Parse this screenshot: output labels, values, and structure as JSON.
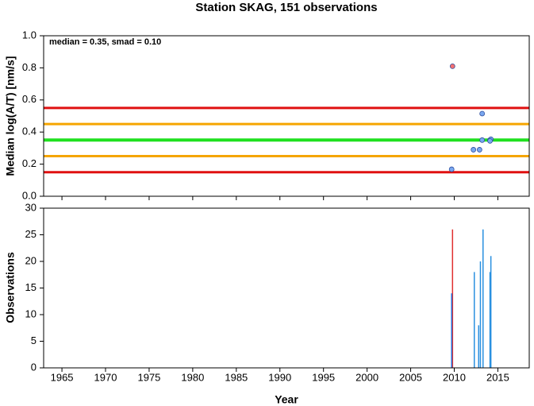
{
  "chart_data": [
    {
      "type": "scatter",
      "title": "Station SKAG, 151 observations",
      "annotation": "median = 0.35, smad = 0.10",
      "ylabel": "Median log(A/T) [nm/s]",
      "x": [
        2009.8,
        2009.7,
        2013.2,
        2012.2,
        2012.9,
        2013.2,
        2014.1,
        2014.2,
        2014.1
      ],
      "values": [
        0.81,
        0.168,
        0.515,
        0.29,
        0.29,
        0.35,
        0.35,
        0.355,
        0.345
      ],
      "colors": [
        "#f47070",
        "#7aa8f0",
        "#7aa8f0",
        "#7aa8f0",
        "#7aa8f0",
        "#7aa8f0",
        "#7aa8f0",
        "#7aa8f0",
        "#7aa8f0"
      ],
      "hlines": [
        {
          "value": 0.55,
          "color": "#e01010"
        },
        {
          "value": 0.45,
          "color": "#f5a500"
        },
        {
          "value": 0.35,
          "color": "#1fe01f"
        },
        {
          "value": 0.25,
          "color": "#f5a500"
        },
        {
          "value": 0.15,
          "color": "#e01010"
        }
      ],
      "xlim": [
        1962.9,
        2018.6
      ],
      "xticks": [
        1965,
        1970,
        1975,
        1980,
        1985,
        1990,
        1995,
        2000,
        2005,
        2010,
        2015
      ],
      "ylim": [
        0,
        1
      ],
      "yticks": [
        {
          "value": 0,
          "label": "0.0"
        },
        0.2,
        0.4,
        0.6,
        0.8,
        {
          "value": 1,
          "label": "1.0"
        }
      ]
    },
    {
      "type": "bar",
      "xlabel": "Year",
      "ylabel": "Observations",
      "x": [
        2009.8,
        2009.7,
        2012.3,
        2012.8,
        2013.0,
        2013.3,
        2014.1,
        2014.2
      ],
      "values": [
        26,
        14,
        18,
        8,
        20,
        26,
        18,
        21
      ],
      "colors": [
        "#e03030",
        "#2a6fd8",
        "#2a90e0",
        "#2a90e0",
        "#2a90e0",
        "#2a90e0",
        "#2a90e0",
        "#2a90e0"
      ],
      "xlim": [
        1962.9,
        2018.6
      ],
      "xticks": [
        1965,
        1970,
        1975,
        1980,
        1985,
        1990,
        1995,
        2000,
        2005,
        2010,
        2015
      ],
      "ylim": [
        0,
        30
      ],
      "yticks": [
        0,
        5,
        10,
        15,
        20,
        25,
        30
      ]
    }
  ]
}
